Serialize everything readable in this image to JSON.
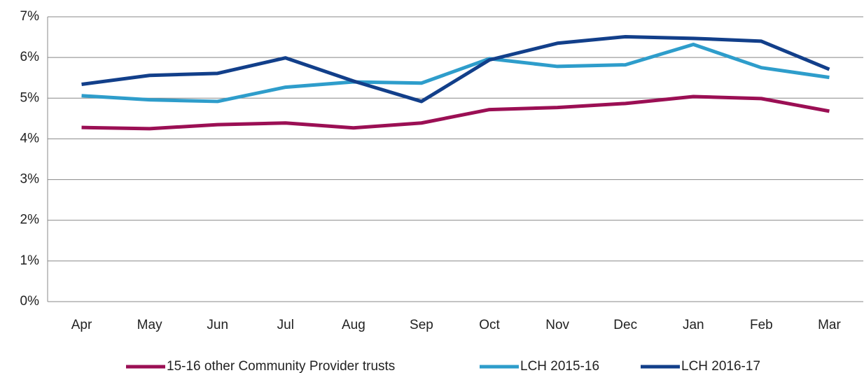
{
  "chart_data": {
    "type": "line",
    "categories": [
      "Apr",
      "May",
      "Jun",
      "Jul",
      "Aug",
      "Sep",
      "Oct",
      "Nov",
      "Dec",
      "Jan",
      "Feb",
      "Mar"
    ],
    "series": [
      {
        "name": "15-16 other Community Provider trusts",
        "color": "#9b0f54",
        "values": [
          4.28,
          4.25,
          4.35,
          4.39,
          4.27,
          4.39,
          4.72,
          4.77,
          4.87,
          5.04,
          4.99,
          4.68
        ]
      },
      {
        "name": "LCH 2015-16",
        "color": "#2e9dcb",
        "values": [
          5.06,
          4.96,
          4.92,
          5.27,
          5.4,
          5.37,
          5.97,
          5.78,
          5.82,
          6.32,
          5.75,
          5.51
        ]
      },
      {
        "name": "LCH 2016-17",
        "color": "#123f8a",
        "values": [
          5.34,
          5.56,
          5.61,
          5.99,
          5.42,
          4.92,
          5.94,
          6.35,
          6.51,
          6.47,
          6.4,
          5.71
        ]
      }
    ],
    "ylim": [
      0,
      7
    ],
    "yticks": [
      {
        "value": 0,
        "label": "0%"
      },
      {
        "value": 1,
        "label": "1%"
      },
      {
        "value": 2,
        "label": "2%"
      },
      {
        "value": 3,
        "label": "3%"
      },
      {
        "value": 4,
        "label": "4%"
      },
      {
        "value": 5,
        "label": "5%"
      },
      {
        "value": 6,
        "label": "6%"
      },
      {
        "value": 7,
        "label": "7%"
      }
    ],
    "grid": true,
    "legend": "bottom"
  }
}
